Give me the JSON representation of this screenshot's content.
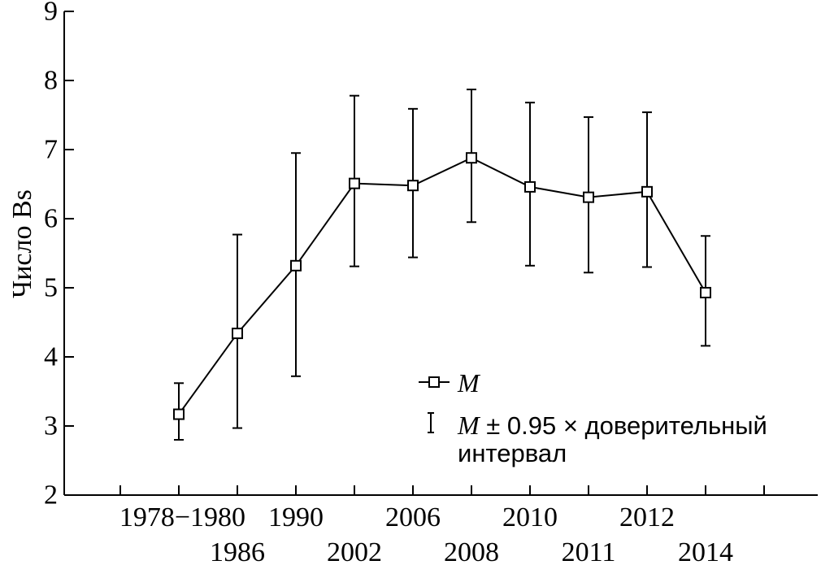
{
  "chart_data": {
    "type": "line",
    "ylabel": "Число Bs",
    "ylim": [
      2,
      9
    ],
    "yticks": [
      "2",
      "3",
      "4",
      "5",
      "6",
      "7",
      "8",
      "9"
    ],
    "categories": [
      "1978–1980",
      "1986",
      "1990",
      "2002",
      "2006",
      "2008",
      "2010",
      "2011",
      "2012",
      "2014"
    ],
    "category_labels": [
      "1978−1980",
      "1986",
      "1990",
      "2002",
      "2006",
      "2008",
      "2010",
      "2011",
      "2012",
      "2014"
    ],
    "series": [
      {
        "name": "M",
        "values": [
          3.17,
          4.34,
          5.32,
          6.51,
          6.48,
          6.88,
          6.46,
          6.31,
          6.39,
          4.93
        ],
        "err_low": [
          2.8,
          2.97,
          3.72,
          5.31,
          5.44,
          5.95,
          5.32,
          5.22,
          5.3,
          4.16
        ],
        "err_high": [
          3.62,
          5.77,
          6.95,
          7.78,
          7.59,
          7.87,
          7.68,
          7.47,
          7.54,
          5.75
        ]
      }
    ],
    "legend": {
      "placement": "center-right",
      "mean_label": "M",
      "ci_label_italic": "M",
      "ci_label_rest": " ± 0.95 × доверительный",
      "ci_label_line2": "интервал"
    },
    "grid": false
  }
}
